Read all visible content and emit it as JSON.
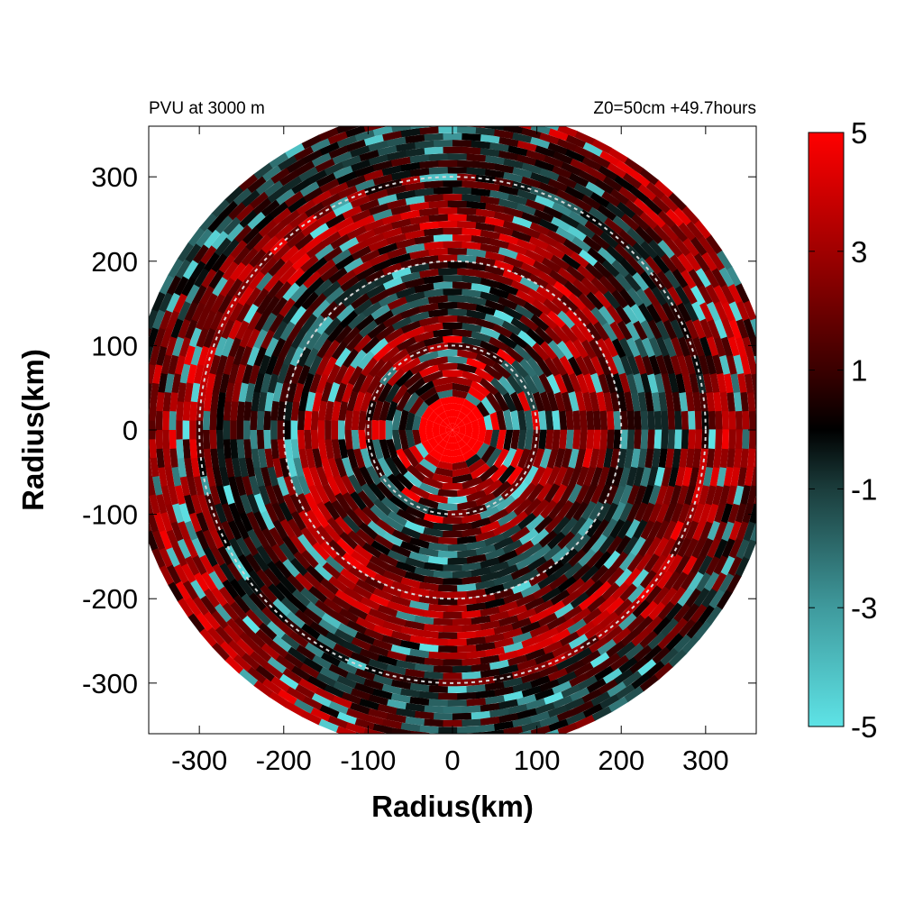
{
  "chart_data": {
    "type": "heatmap",
    "projection": "polar field on Cartesian axes",
    "header_left": "PVU at  3000 m",
    "header_right": "Z0=50cm  +49.7hours",
    "xlabel": "Radius(km)",
    "ylabel": "Radius(km)",
    "xlim": [
      -360,
      360
    ],
    "ylim": [
      -360,
      360
    ],
    "x_ticks": [
      -300,
      -200,
      -100,
      0,
      100,
      200,
      300
    ],
    "y_ticks": [
      300,
      200,
      100,
      0,
      -100,
      -200,
      -300
    ],
    "domain_radius_km": 380,
    "reference_circles_km": [
      100,
      200,
      300
    ],
    "reference_circle_style": "dashed light grey",
    "colorbar": {
      "min": -5,
      "max": 5,
      "tick_labels": [
        "5",
        "3",
        "1",
        "-1",
        "-3",
        "-5"
      ],
      "tick_values": [
        5,
        3,
        1,
        -1,
        -3,
        -5
      ],
      "colors": [
        {
          "value": -5,
          "color": "#5ee3e6"
        },
        {
          "value": -3,
          "color": "#3f9a9d"
        },
        {
          "value": -1,
          "color": "#1b3d3c"
        },
        {
          "value": 0,
          "color": "#000000"
        },
        {
          "value": 1,
          "color": "#3a0000"
        },
        {
          "value": 3,
          "color": "#a00000"
        },
        {
          "value": 5,
          "color": "#ff0000"
        }
      ]
    },
    "field_features": {
      "core_radius_km": 40,
      "core_value": 5,
      "background": "mostly positive (dark red), with scattered negative (cyan) patches along spiral bands",
      "spiral_bands": "alternating red and cyan patches elongated in the azimuthal direction"
    },
    "grid": false,
    "legend_placement": "colorbar right"
  }
}
